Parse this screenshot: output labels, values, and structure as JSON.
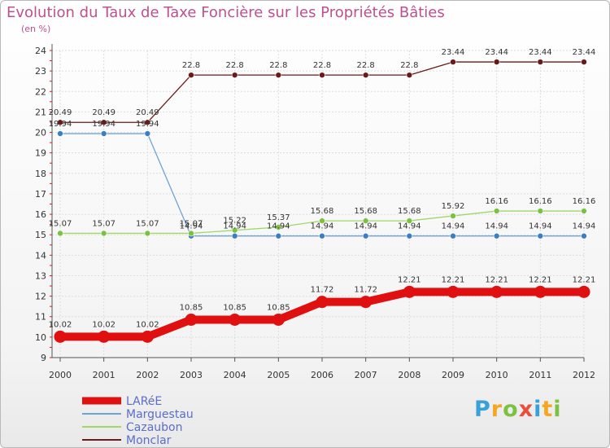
{
  "header": {
    "title": "Evolution du Taux de Taxe Foncière sur les Propriétés Bâties",
    "unit": "(en %)"
  },
  "logo": {
    "text": "Proxiti",
    "letters": [
      {
        "ch": "P",
        "color": "#3aa0d8"
      },
      {
        "ch": "r",
        "color": "#f5a623"
      },
      {
        "ch": "o",
        "color": "#7cc242"
      },
      {
        "ch": "x",
        "color": "#e94e3d"
      },
      {
        "ch": "i",
        "color": "#3aa0d8"
      },
      {
        "ch": "t",
        "color": "#f5a623"
      },
      {
        "ch": "i",
        "color": "#7cc242"
      }
    ]
  },
  "chart_data": {
    "type": "line",
    "title": "Evolution du Taux de Taxe Foncière sur les Propriétés Bâties",
    "ylabel": "(en %)",
    "xlabel": "",
    "categories": [
      "2000",
      "2001",
      "2002",
      "2003",
      "2004",
      "2005",
      "2006",
      "2007",
      "2008",
      "2009",
      "2010",
      "2011",
      "2012"
    ],
    "ylim": [
      9,
      24
    ],
    "yticks": [
      9,
      10,
      11,
      12,
      13,
      14,
      15,
      16,
      17,
      18,
      19,
      20,
      21,
      22,
      23,
      24
    ],
    "series": [
      {
        "name": "Monclar",
        "color": "#6b1a1a",
        "values": [
          20.49,
          20.49,
          20.49,
          22.8,
          22.8,
          22.8,
          22.8,
          22.8,
          22.8,
          23.44,
          23.44,
          23.44,
          23.44
        ],
        "labels": [
          "20.49",
          "20.49",
          "20.49",
          "22.8",
          "22.8",
          "22.8",
          "22.8",
          "22.8",
          "22.8",
          "23.44",
          "23.44",
          "23.44",
          "23.44"
        ]
      },
      {
        "name": "Marguestau",
        "color": "#6fa3d4",
        "values": [
          19.94,
          19.94,
          19.94,
          14.94,
          14.94,
          14.94,
          14.94,
          14.94,
          14.94,
          14.94,
          14.94,
          14.94,
          14.94
        ],
        "labels": [
          "19.94",
          "19.94",
          "19.94",
          "14.94",
          "14.94",
          "14.94",
          "14.94",
          "14.94",
          "14.94",
          "14.94",
          "14.94",
          "14.94",
          "14.94"
        ]
      },
      {
        "name": "Cazaubon",
        "color": "#9ed86a",
        "values": [
          15.07,
          15.07,
          15.07,
          15.07,
          15.22,
          15.37,
          15.68,
          15.68,
          15.68,
          15.92,
          16.16,
          16.16,
          16.16
        ],
        "labels": [
          "15.07",
          "15.07",
          "15.07",
          "15.07",
          "15.22",
          "15.37",
          "15.68",
          "15.68",
          "15.68",
          "15.92",
          "16.16",
          "16.16",
          "16.16"
        ]
      },
      {
        "name": "LARéE",
        "color": "#e01010",
        "values": [
          10.02,
          10.02,
          10.02,
          10.85,
          10.85,
          10.85,
          11.72,
          11.72,
          12.21,
          12.21,
          12.21,
          12.21,
          12.21
        ],
        "labels": [
          "10.02",
          "10.02",
          "10.02",
          "10.85",
          "10.85",
          "10.85",
          "11.72",
          "11.72",
          "12.21",
          "12.21",
          "12.21",
          "12.21",
          "12.21"
        ]
      }
    ],
    "legend": [
      {
        "name": "LARéE",
        "color": "#e01010"
      },
      {
        "name": "Marguestau",
        "color": "#6fa3d4"
      },
      {
        "name": "Cazaubon",
        "color": "#9ed86a"
      },
      {
        "name": "Monclar",
        "color": "#6b1a1a"
      }
    ],
    "legend_position": "bottom-left"
  }
}
